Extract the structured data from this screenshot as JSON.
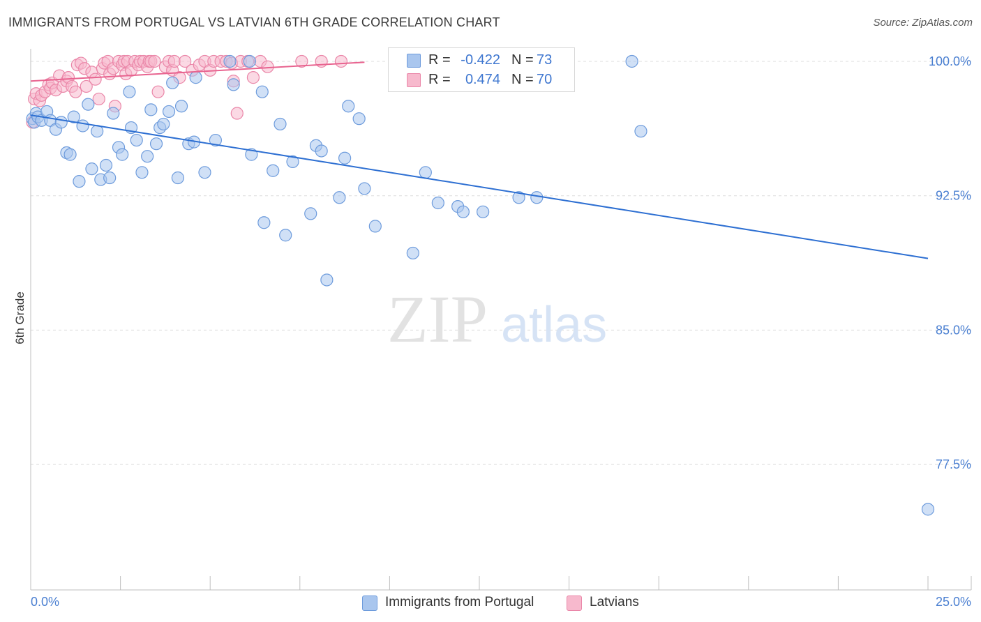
{
  "title": "IMMIGRANTS FROM PORTUGAL VS LATVIAN 6TH GRADE CORRELATION CHART",
  "source": "Source: ZipAtlas.com",
  "watermark": {
    "zip": "ZIP",
    "atlas": "atlas"
  },
  "legend_top": {
    "r_label": "R =",
    "n_label": "N =",
    "rows": [
      {
        "r": "-0.422",
        "n": "73"
      },
      {
        "r": "0.474",
        "n": "70"
      }
    ]
  },
  "legend_bottom": [
    {
      "label": "Immigrants from Portugal"
    },
    {
      "label": "Latvians"
    }
  ],
  "colors": {
    "blue_fill": "#a9c6ee",
    "blue_stroke": "#6d9bdc",
    "blue_line": "#2d6fd2",
    "pink_fill": "#f7b9cd",
    "pink_stroke": "#ea86a8",
    "pink_line": "#e8638f",
    "tick_text": "#4a7fd1",
    "grid": "#dcdcdc"
  },
  "chart_data": {
    "type": "scatter",
    "title": "IMMIGRANTS FROM PORTUGAL VS LATVIAN 6TH GRADE CORRELATION CHART",
    "xlabel": "",
    "ylabel": "6th Grade",
    "x_tick_labels": [
      "0.0%",
      "25.0%"
    ],
    "y_tick_labels": [
      "100.0%",
      "92.5%",
      "85.0%",
      "77.5%"
    ],
    "y_ticks": [
      100.0,
      92.5,
      85.0,
      77.5
    ],
    "xlim": [
      0.0,
      25.0
    ],
    "ylim": [
      70.5,
      100.7
    ],
    "grid": true,
    "legend_placement": "top-center",
    "series": [
      {
        "name": "Immigrants from Portugal",
        "color": "#a9c6ee",
        "trend": {
          "x": [
            0.0,
            25.0
          ],
          "y": [
            97.0,
            89.0
          ]
        },
        "points": [
          [
            0.05,
            96.8
          ],
          [
            0.1,
            96.6
          ],
          [
            0.15,
            97.1
          ],
          [
            0.2,
            96.9
          ],
          [
            0.3,
            96.7
          ],
          [
            0.45,
            97.2
          ],
          [
            0.55,
            96.7
          ],
          [
            0.7,
            96.2
          ],
          [
            0.85,
            96.6
          ],
          [
            1.0,
            94.9
          ],
          [
            1.1,
            94.8
          ],
          [
            1.2,
            96.9
          ],
          [
            1.35,
            93.3
          ],
          [
            1.45,
            96.4
          ],
          [
            1.6,
            97.6
          ],
          [
            1.7,
            94.0
          ],
          [
            1.85,
            96.1
          ],
          [
            1.95,
            93.4
          ],
          [
            2.1,
            94.2
          ],
          [
            2.2,
            93.5
          ],
          [
            2.3,
            97.1
          ],
          [
            2.45,
            95.2
          ],
          [
            2.55,
            94.8
          ],
          [
            2.75,
            98.3
          ],
          [
            2.8,
            96.3
          ],
          [
            2.95,
            95.6
          ],
          [
            3.1,
            93.8
          ],
          [
            3.25,
            94.7
          ],
          [
            3.35,
            97.3
          ],
          [
            3.5,
            95.4
          ],
          [
            3.6,
            96.3
          ],
          [
            3.7,
            96.5
          ],
          [
            3.85,
            97.2
          ],
          [
            3.95,
            98.8
          ],
          [
            4.1,
            93.5
          ],
          [
            4.2,
            97.5
          ],
          [
            4.4,
            95.4
          ],
          [
            4.55,
            95.5
          ],
          [
            4.6,
            99.1
          ],
          [
            4.85,
            93.8
          ],
          [
            5.15,
            95.6
          ],
          [
            5.55,
            100.0
          ],
          [
            5.65,
            98.7
          ],
          [
            6.1,
            100.0
          ],
          [
            6.15,
            94.8
          ],
          [
            6.45,
            98.3
          ],
          [
            6.5,
            91.0
          ],
          [
            6.75,
            93.9
          ],
          [
            6.95,
            96.5
          ],
          [
            7.1,
            90.3
          ],
          [
            7.3,
            94.4
          ],
          [
            7.8,
            91.5
          ],
          [
            7.95,
            95.3
          ],
          [
            8.1,
            95.0
          ],
          [
            8.25,
            87.8
          ],
          [
            8.6,
            92.4
          ],
          [
            8.75,
            94.6
          ],
          [
            8.85,
            97.5
          ],
          [
            9.15,
            96.8
          ],
          [
            9.3,
            92.9
          ],
          [
            9.6,
            90.8
          ],
          [
            10.65,
            89.3
          ],
          [
            11.0,
            93.8
          ],
          [
            11.35,
            92.1
          ],
          [
            11.9,
            91.9
          ],
          [
            12.05,
            91.6
          ],
          [
            12.6,
            91.6
          ],
          [
            13.6,
            92.4
          ],
          [
            14.1,
            92.4
          ],
          [
            13.95,
            100.0
          ],
          [
            16.75,
            100.0
          ],
          [
            17.0,
            96.1
          ],
          [
            25.0,
            75.0
          ]
        ]
      },
      {
        "name": "Latvians",
        "color": "#f7b9cd",
        "trend": {
          "x": [
            0.0,
            9.3
          ],
          "y": [
            98.9,
            99.95
          ]
        },
        "points": [
          [
            0.05,
            96.6
          ],
          [
            0.1,
            97.9
          ],
          [
            0.15,
            98.2
          ],
          [
            0.25,
            97.8
          ],
          [
            0.3,
            98.1
          ],
          [
            0.4,
            98.3
          ],
          [
            0.5,
            98.7
          ],
          [
            0.55,
            98.5
          ],
          [
            0.6,
            98.8
          ],
          [
            0.7,
            98.4
          ],
          [
            0.8,
            99.2
          ],
          [
            0.9,
            98.6
          ],
          [
            1.0,
            98.9
          ],
          [
            1.05,
            99.1
          ],
          [
            1.15,
            98.6
          ],
          [
            1.25,
            98.3
          ],
          [
            1.3,
            99.8
          ],
          [
            1.4,
            99.9
          ],
          [
            1.5,
            99.6
          ],
          [
            1.55,
            98.6
          ],
          [
            1.7,
            99.4
          ],
          [
            1.8,
            99.0
          ],
          [
            1.9,
            97.9
          ],
          [
            2.0,
            99.6
          ],
          [
            2.05,
            99.9
          ],
          [
            2.15,
            100.0
          ],
          [
            2.2,
            99.3
          ],
          [
            2.3,
            99.6
          ],
          [
            2.35,
            97.5
          ],
          [
            2.45,
            100.0
          ],
          [
            2.55,
            99.8
          ],
          [
            2.6,
            100.0
          ],
          [
            2.65,
            99.3
          ],
          [
            2.7,
            100.0
          ],
          [
            2.8,
            99.5
          ],
          [
            2.9,
            100.0
          ],
          [
            3.0,
            99.8
          ],
          [
            3.05,
            100.0
          ],
          [
            3.15,
            100.0
          ],
          [
            3.25,
            99.7
          ],
          [
            3.3,
            100.0
          ],
          [
            3.35,
            100.0
          ],
          [
            3.45,
            100.0
          ],
          [
            3.55,
            98.3
          ],
          [
            3.75,
            99.7
          ],
          [
            3.85,
            100.0
          ],
          [
            3.95,
            99.5
          ],
          [
            4.0,
            100.0
          ],
          [
            4.15,
            99.1
          ],
          [
            4.3,
            100.0
          ],
          [
            4.5,
            99.5
          ],
          [
            4.7,
            99.8
          ],
          [
            4.85,
            100.0
          ],
          [
            5.0,
            99.5
          ],
          [
            5.1,
            100.0
          ],
          [
            5.3,
            100.0
          ],
          [
            5.45,
            100.0
          ],
          [
            5.6,
            99.9
          ],
          [
            5.65,
            98.9
          ],
          [
            5.75,
            97.1
          ],
          [
            5.85,
            100.0
          ],
          [
            6.05,
            100.0
          ],
          [
            6.2,
            99.1
          ],
          [
            6.4,
            100.0
          ],
          [
            6.6,
            99.7
          ],
          [
            7.55,
            100.0
          ],
          [
            8.1,
            100.0
          ],
          [
            8.65,
            100.0
          ],
          [
            10.4,
            100.0
          ],
          [
            13.8,
            100.0
          ]
        ]
      }
    ]
  }
}
